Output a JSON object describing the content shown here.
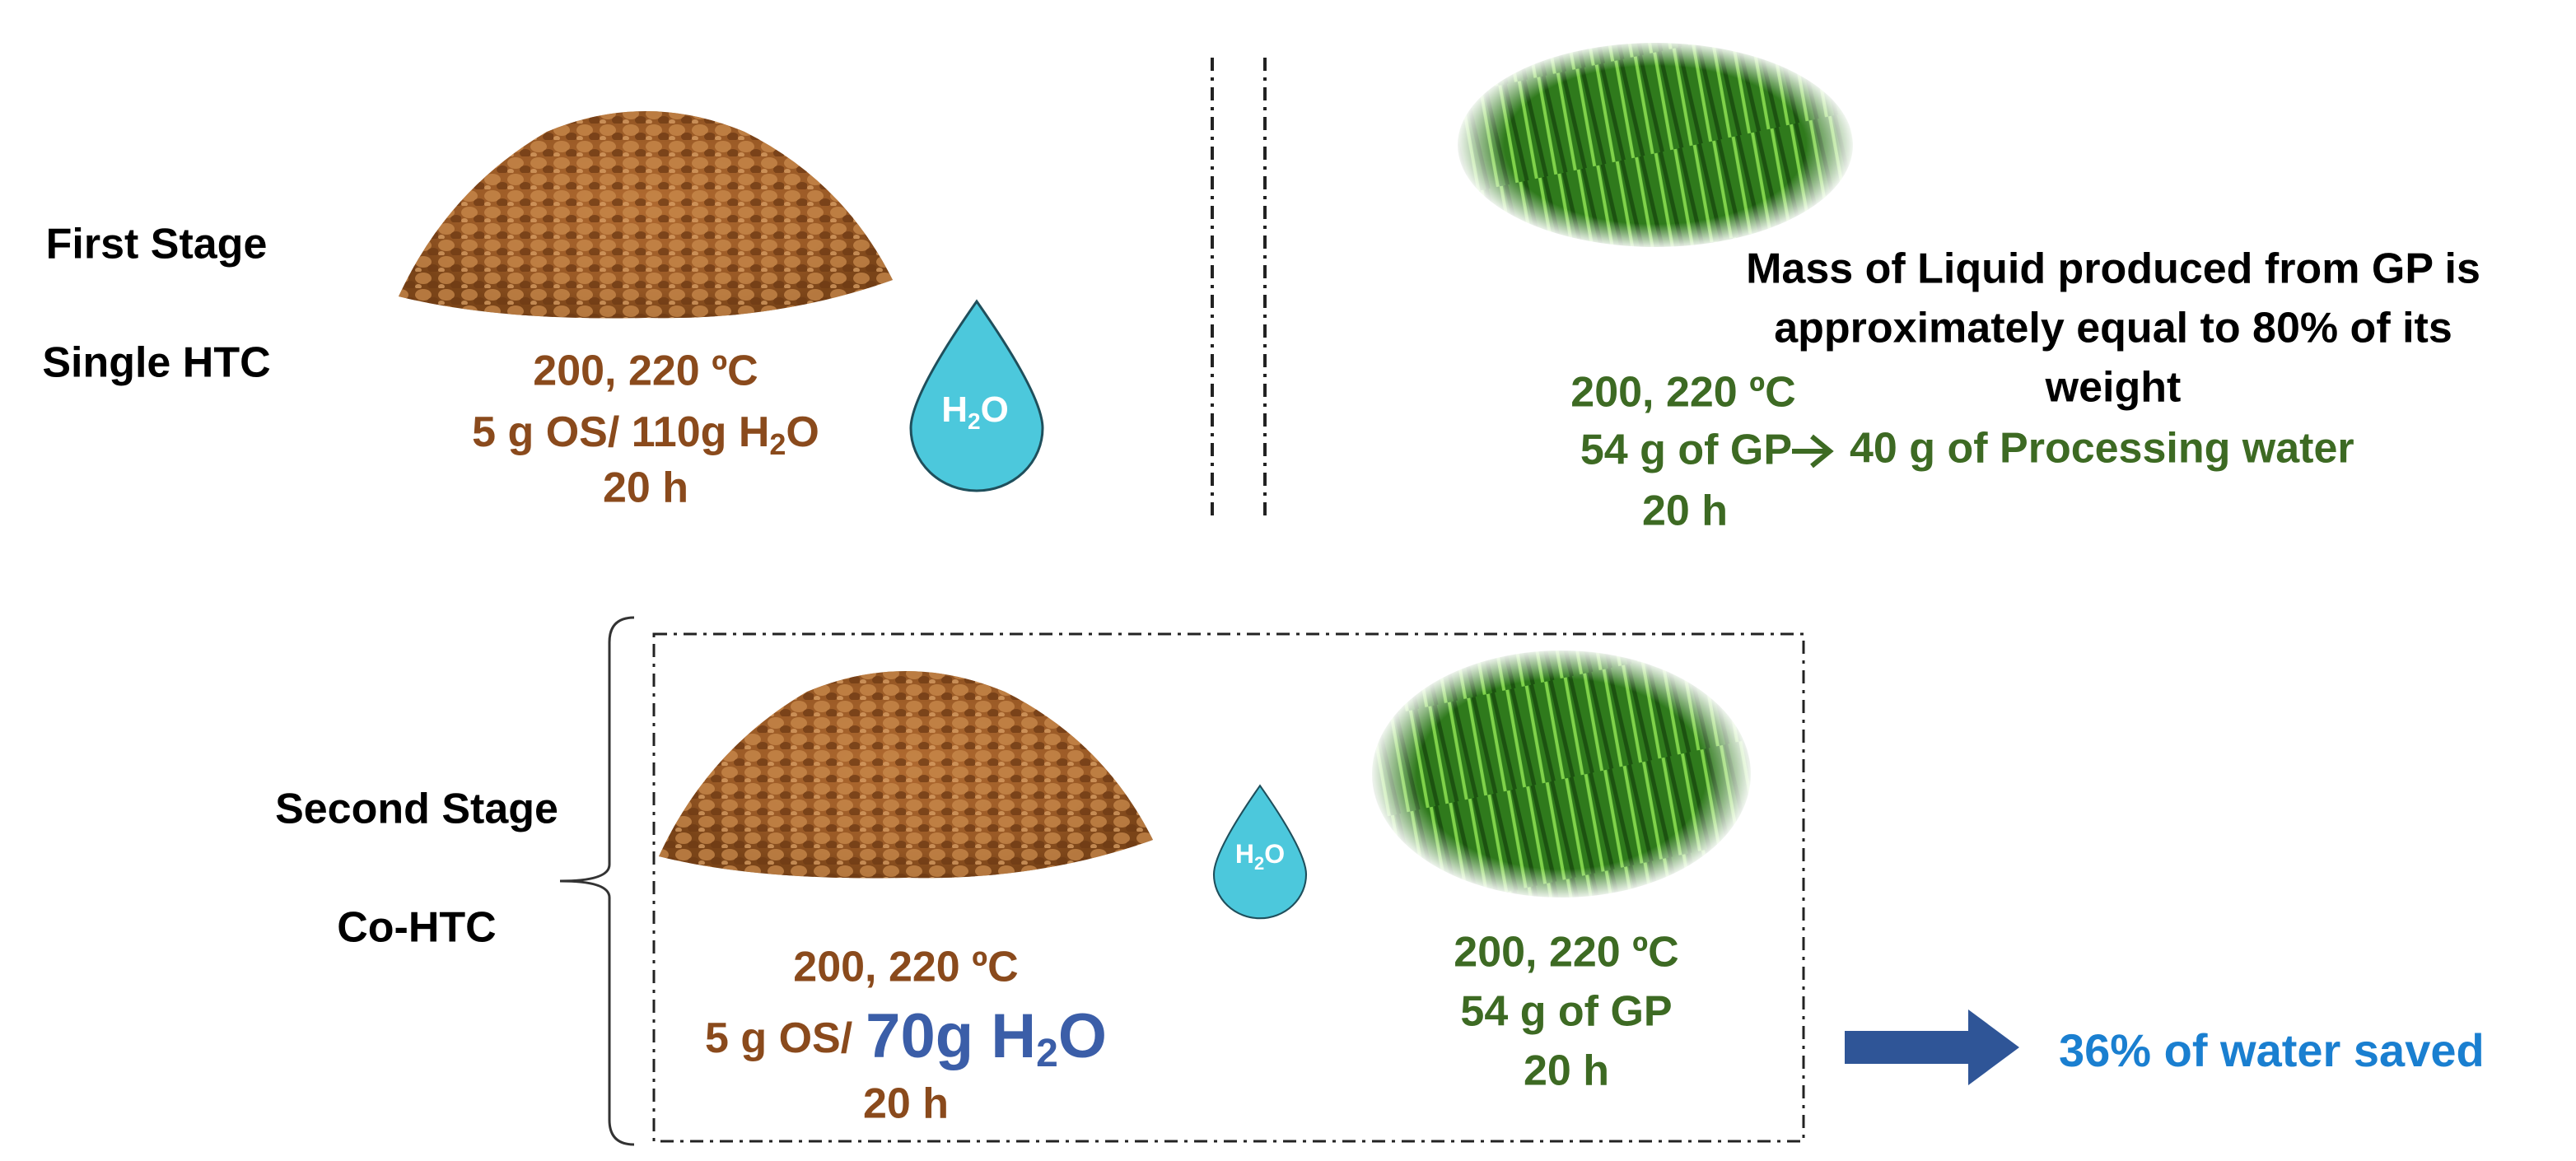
{
  "first_stage": {
    "label": "First Stage",
    "method": "Single HTC",
    "os_conditions": {
      "temperature": "200, 220 ºC",
      "ratio": [
        "5 g OS/ 110g H",
        "2",
        "O"
      ],
      "time": "20 h"
    },
    "drop": [
      "H",
      "2",
      "O"
    ],
    "gp_note": [
      "Mass of Liquid produced from GP is",
      "approximately equal to 80% of its",
      "weight"
    ],
    "gp_conditions": {
      "temperature": "200, 220 ºC",
      "amount": "54 g of GP",
      "time": "20 h"
    },
    "gp_output": "40 g of Processing water"
  },
  "second_stage": {
    "label": "Second Stage",
    "method": "Co-HTC",
    "os_conditions": {
      "temperature": "200, 220 ºC",
      "ratio": [
        "5 g OS/",
        "70g H",
        "2",
        "O"
      ],
      "time": "20 h"
    },
    "drop": [
      "H",
      "2",
      "O"
    ],
    "gp_conditions": {
      "temperature": "200, 220 ºC",
      "amount": "54 g of GP",
      "time": "20 h"
    },
    "result": "36% of water saved"
  }
}
